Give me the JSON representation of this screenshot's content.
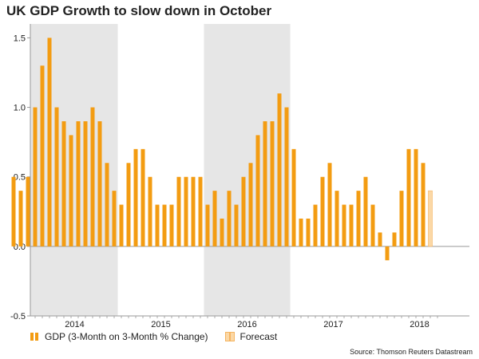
{
  "colors": {
    "gdp": "#f39c12",
    "forecast": "#fbd8a6",
    "forecast_stroke": "#f5b461",
    "shade": "#e6e6e6",
    "axis": "#999999",
    "text": "#222222"
  },
  "chart_data": {
    "type": "bar",
    "title": "UK GDP Growth to slow down in October",
    "ylim": [
      -0.5,
      1.6
    ],
    "yticks": [
      -0.5,
      0.0,
      0.5,
      1.0,
      1.5
    ],
    "ytick_labels": [
      "-0.5",
      "0.0",
      "0.5",
      "1.0",
      "1.5"
    ],
    "first_period": "2013-10",
    "years": [
      "2014",
      "2015",
      "2016",
      "2017",
      "2018"
    ],
    "shaded_years": [
      "2014",
      "2016"
    ],
    "series": [
      {
        "name": "GDP (3-Month on 3-Month % Change)",
        "values": [
          0.5,
          0.4,
          0.5,
          1.0,
          1.3,
          1.5,
          1.0,
          0.9,
          0.8,
          0.9,
          0.9,
          1.0,
          0.9,
          0.6,
          0.4,
          0.3,
          0.6,
          0.7,
          0.7,
          0.5,
          0.3,
          0.3,
          0.3,
          0.5,
          0.5,
          0.5,
          0.5,
          0.3,
          0.4,
          0.2,
          0.4,
          0.3,
          0.5,
          0.6,
          0.8,
          0.9,
          0.9,
          1.1,
          1.0,
          0.7,
          0.2,
          0.2,
          0.3,
          0.5,
          0.6,
          0.4,
          0.3,
          0.3,
          0.4,
          0.5,
          0.3,
          0.1,
          -0.1,
          0.1,
          0.4,
          0.7,
          0.7,
          0.6
        ]
      },
      {
        "name": "Forecast",
        "values": [
          0.4
        ]
      }
    ],
    "legend": [
      "GDP (3-Month on 3-Month % Change)",
      "Forecast"
    ],
    "legend_position": "bottom-left",
    "source": "Source: Thomson Reuters Datastream"
  }
}
